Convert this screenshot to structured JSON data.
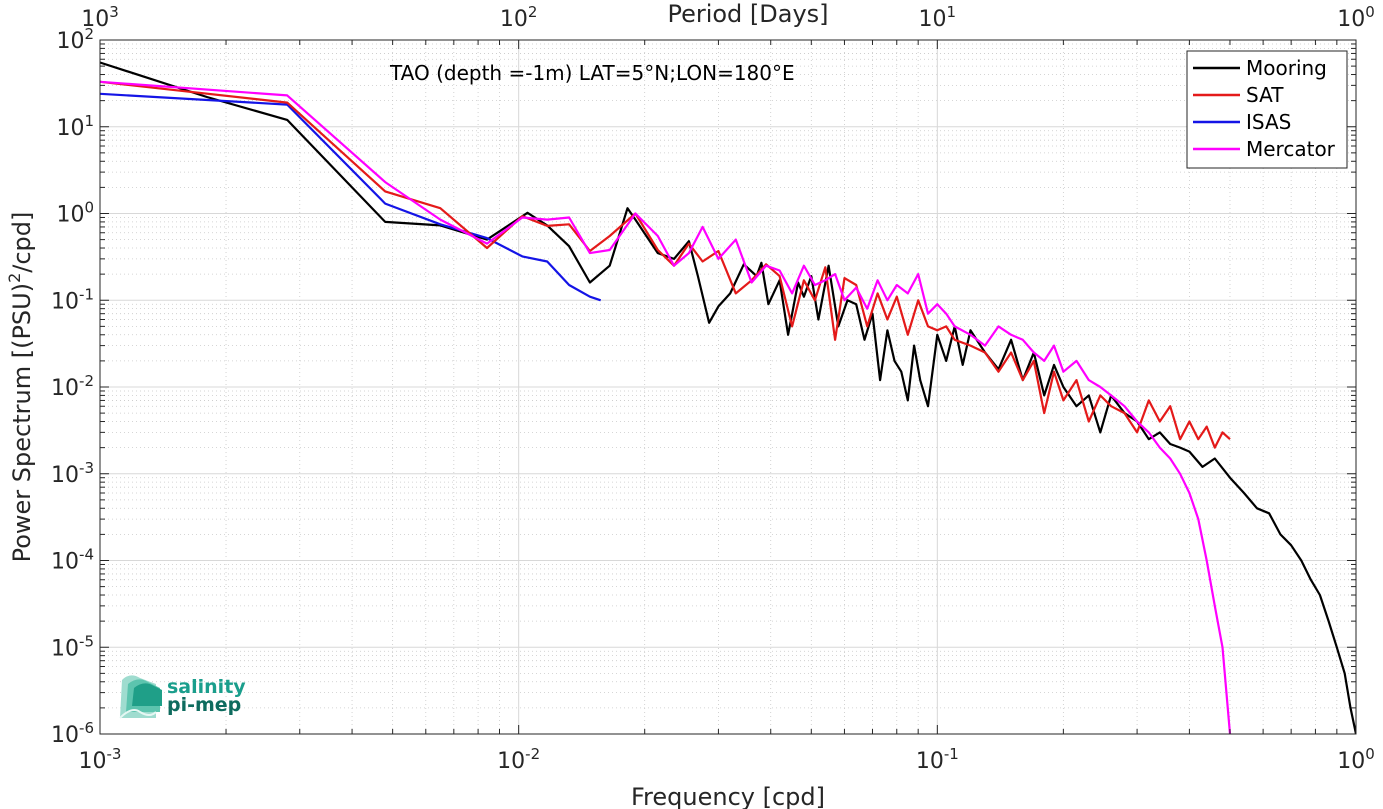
{
  "chart_data": {
    "type": "line",
    "title": "TAO (depth =-1m) LAT=5°N;LON=180°E",
    "xlabel": "Frequency [cpd]",
    "ylabel": "Power Spectrum [(PSU)²/cpd]",
    "ylabel_parts": {
      "before": "Power Spectrum [(PSU)",
      "sup": "2",
      "after": "/cpd]"
    },
    "top_axis_label": "Period [Days]",
    "xscale": "log",
    "yscale": "log",
    "xlim": [
      0.001,
      1
    ],
    "ylim": [
      1e-06,
      100
    ],
    "grid": true,
    "legend_position": "top-right",
    "x_ticks": [
      {
        "value": 0.001,
        "base": "10",
        "exp": "-3"
      },
      {
        "value": 0.01,
        "base": "10",
        "exp": "-2"
      },
      {
        "value": 0.1,
        "base": "10",
        "exp": "-1"
      },
      {
        "value": 1,
        "base": "10",
        "exp": "0"
      }
    ],
    "top_ticks": [
      {
        "period": 1000,
        "base": "10",
        "exp": "3"
      },
      {
        "period": 100,
        "base": "10",
        "exp": "2"
      },
      {
        "period": 10,
        "base": "10",
        "exp": "1"
      },
      {
        "period": 1,
        "base": "10",
        "exp": "0"
      }
    ],
    "y_ticks": [
      {
        "value": 100,
        "base": "10",
        "exp": "2"
      },
      {
        "value": 10,
        "base": "10",
        "exp": "1"
      },
      {
        "value": 1,
        "base": "10",
        "exp": "0"
      },
      {
        "value": 0.1,
        "base": "10",
        "exp": "-1"
      },
      {
        "value": 0.01,
        "base": "10",
        "exp": "-2"
      },
      {
        "value": 0.001,
        "base": "10",
        "exp": "-3"
      },
      {
        "value": 0.0001,
        "base": "10",
        "exp": "-4"
      },
      {
        "value": 1e-05,
        "base": "10",
        "exp": "-5"
      },
      {
        "value": 1e-06,
        "base": "10",
        "exp": "-6"
      }
    ],
    "series": [
      {
        "name": "Mooring",
        "color": "#000000",
        "x": [
          0.001,
          0.0018,
          0.0028,
          0.0048,
          0.0065,
          0.0084,
          0.0105,
          0.0117,
          0.0132,
          0.0148,
          0.0165,
          0.0182,
          0.019,
          0.0215,
          0.0235,
          0.0255,
          0.0268,
          0.0285,
          0.03,
          0.032,
          0.0345,
          0.037,
          0.038,
          0.0395,
          0.042,
          0.044,
          0.0465,
          0.048,
          0.05,
          0.052,
          0.055,
          0.058,
          0.061,
          0.064,
          0.067,
          0.07,
          0.073,
          0.076,
          0.079,
          0.082,
          0.085,
          0.088,
          0.091,
          0.095,
          0.1,
          0.105,
          0.11,
          0.115,
          0.12,
          0.13,
          0.14,
          0.15,
          0.16,
          0.17,
          0.18,
          0.19,
          0.2,
          0.215,
          0.23,
          0.245,
          0.26,
          0.28,
          0.3,
          0.32,
          0.34,
          0.36,
          0.38,
          0.4,
          0.43,
          0.46,
          0.5,
          0.54,
          0.58,
          0.62,
          0.66,
          0.7,
          0.74,
          0.78,
          0.82,
          0.86,
          0.9,
          0.94,
          0.97,
          1.0
        ],
        "y": [
          55,
          22,
          12,
          0.8,
          0.73,
          0.5,
          1.02,
          0.73,
          0.42,
          0.16,
          0.25,
          1.15,
          0.85,
          0.35,
          0.3,
          0.48,
          0.19,
          0.055,
          0.085,
          0.12,
          0.26,
          0.19,
          0.27,
          0.09,
          0.17,
          0.04,
          0.16,
          0.11,
          0.19,
          0.06,
          0.25,
          0.05,
          0.1,
          0.09,
          0.035,
          0.07,
          0.012,
          0.045,
          0.02,
          0.015,
          0.007,
          0.03,
          0.012,
          0.006,
          0.04,
          0.02,
          0.05,
          0.018,
          0.045,
          0.025,
          0.016,
          0.035,
          0.012,
          0.025,
          0.008,
          0.018,
          0.01,
          0.006,
          0.008,
          0.003,
          0.008,
          0.005,
          0.004,
          0.0025,
          0.003,
          0.0022,
          0.002,
          0.0018,
          0.0012,
          0.0015,
          0.0009,
          0.0006,
          0.0004,
          0.00035,
          0.0002,
          0.00015,
          0.0001,
          6e-05,
          4e-05,
          2e-05,
          1e-05,
          5e-06,
          2e-06,
          1e-06
        ]
      },
      {
        "name": "SAT",
        "color": "#e41a1a",
        "x": [
          0.001,
          0.0028,
          0.0048,
          0.0065,
          0.0084,
          0.0102,
          0.0117,
          0.0132,
          0.0148,
          0.0165,
          0.019,
          0.0215,
          0.0235,
          0.0255,
          0.0275,
          0.03,
          0.033,
          0.036,
          0.039,
          0.042,
          0.045,
          0.048,
          0.051,
          0.054,
          0.057,
          0.06,
          0.064,
          0.068,
          0.072,
          0.076,
          0.08,
          0.085,
          0.09,
          0.095,
          0.1,
          0.105,
          0.11,
          0.12,
          0.13,
          0.14,
          0.15,
          0.16,
          0.17,
          0.18,
          0.19,
          0.2,
          0.215,
          0.23,
          0.245,
          0.26,
          0.28,
          0.3,
          0.32,
          0.34,
          0.36,
          0.38,
          0.4,
          0.42,
          0.44,
          0.46,
          0.48,
          0.5
        ],
        "y": [
          33,
          19,
          1.8,
          1.15,
          0.4,
          0.93,
          0.72,
          0.75,
          0.37,
          0.55,
          1.0,
          0.38,
          0.25,
          0.45,
          0.28,
          0.37,
          0.12,
          0.17,
          0.26,
          0.19,
          0.05,
          0.17,
          0.1,
          0.24,
          0.035,
          0.18,
          0.15,
          0.05,
          0.12,
          0.06,
          0.11,
          0.04,
          0.1,
          0.05,
          0.045,
          0.05,
          0.035,
          0.03,
          0.025,
          0.015,
          0.025,
          0.012,
          0.02,
          0.005,
          0.015,
          0.007,
          0.012,
          0.004,
          0.008,
          0.006,
          0.005,
          0.003,
          0.007,
          0.004,
          0.006,
          0.0025,
          0.004,
          0.0025,
          0.0035,
          0.002,
          0.003,
          0.0025
        ]
      },
      {
        "name": "ISAS",
        "color": "#1414e6",
        "x": [
          0.001,
          0.0028,
          0.0048,
          0.0065,
          0.0084,
          0.0102,
          0.0117,
          0.0132,
          0.0148,
          0.0157
        ],
        "y": [
          24,
          18,
          1.3,
          0.75,
          0.52,
          0.32,
          0.28,
          0.15,
          0.11,
          0.1
        ]
      },
      {
        "name": "Mercator",
        "color": "#ff00ff",
        "x": [
          0.001,
          0.0028,
          0.0048,
          0.0065,
          0.0084,
          0.0102,
          0.0117,
          0.0132,
          0.0148,
          0.0165,
          0.019,
          0.0215,
          0.0235,
          0.0255,
          0.0275,
          0.03,
          0.033,
          0.036,
          0.039,
          0.042,
          0.045,
          0.048,
          0.051,
          0.054,
          0.057,
          0.06,
          0.064,
          0.068,
          0.072,
          0.076,
          0.08,
          0.085,
          0.09,
          0.095,
          0.1,
          0.105,
          0.11,
          0.12,
          0.13,
          0.14,
          0.15,
          0.16,
          0.17,
          0.18,
          0.19,
          0.2,
          0.215,
          0.23,
          0.245,
          0.26,
          0.28,
          0.3,
          0.32,
          0.34,
          0.36,
          0.38,
          0.4,
          0.42,
          0.44,
          0.46,
          0.48,
          0.5
        ],
        "y": [
          33,
          23,
          2.3,
          0.85,
          0.45,
          0.9,
          0.85,
          0.9,
          0.35,
          0.38,
          1.0,
          0.55,
          0.25,
          0.35,
          0.7,
          0.3,
          0.5,
          0.16,
          0.25,
          0.22,
          0.12,
          0.25,
          0.15,
          0.17,
          0.2,
          0.1,
          0.14,
          0.08,
          0.17,
          0.1,
          0.15,
          0.12,
          0.2,
          0.07,
          0.09,
          0.07,
          0.05,
          0.04,
          0.03,
          0.05,
          0.04,
          0.035,
          0.025,
          0.02,
          0.03,
          0.015,
          0.02,
          0.012,
          0.01,
          0.008,
          0.006,
          0.004,
          0.003,
          0.002,
          0.0015,
          0.001,
          0.0006,
          0.0003,
          0.0001,
          3e-05,
          1e-05,
          1e-06
        ]
      }
    ]
  },
  "logo": {
    "line1": "salinity",
    "line2": "pi-mep",
    "color": "#1a9e8c"
  }
}
